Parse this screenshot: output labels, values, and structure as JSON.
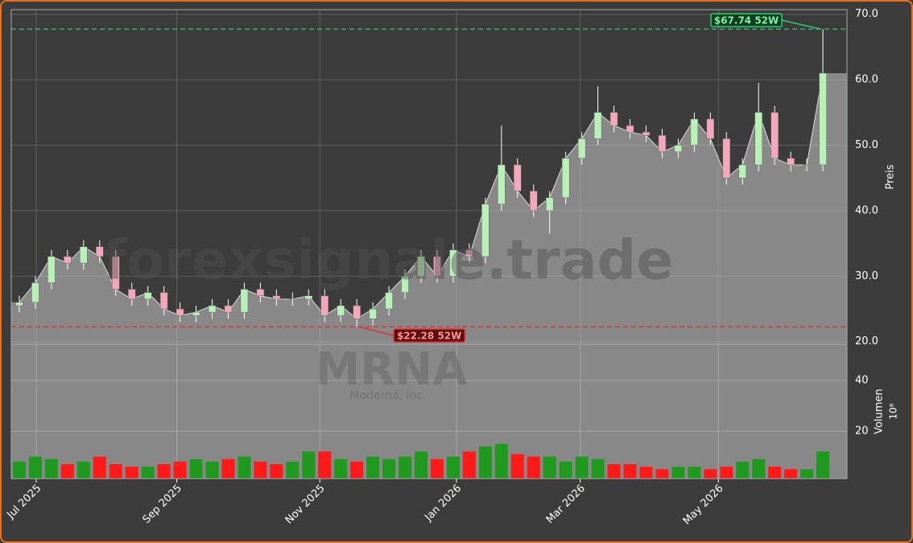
{
  "chart_data": [
    {
      "type": "candlestick",
      "watermark": "forexsignale.trade",
      "ylabel": "Preis",
      "xlim": [
        0,
        52
      ],
      "ylim": [
        19.6,
        70.7
      ],
      "yticks": [
        {
          "value": 20,
          "label": "20.0"
        },
        {
          "value": 30,
          "label": "30.0"
        },
        {
          "value": 40,
          "label": "40.0"
        },
        {
          "value": 50,
          "label": "50.0"
        },
        {
          "value": 60,
          "label": "60.0"
        },
        {
          "value": 70,
          "label": "70.0"
        }
      ],
      "grid": true,
      "up_color": "#b8f0b8",
      "down_color": "#f2a7bc",
      "area_color": "#888888",
      "open": [
        25.5,
        26,
        29,
        33,
        32,
        34.5,
        33,
        28,
        26.5,
        27.5,
        25,
        24,
        24.5,
        25.5,
        24.5,
        28,
        27,
        26.5,
        26.5,
        27,
        24,
        25.5,
        23.5,
        25,
        27.5,
        30,
        33,
        30,
        34,
        33,
        41,
        47,
        43,
        40,
        42,
        48,
        51,
        55,
        53,
        52,
        51.5,
        49,
        50,
        54,
        51,
        45,
        47,
        55,
        48,
        47,
        47
      ],
      "high": [
        27,
        30,
        34,
        34,
        35.5,
        35.5,
        34,
        29,
        28.5,
        28.5,
        26,
        25.5,
        26.5,
        26.5,
        29,
        29,
        28,
        27.5,
        28,
        28,
        26.5,
        26.5,
        26,
        28.5,
        31,
        34,
        34,
        35,
        35,
        42,
        53,
        48,
        44,
        43,
        49,
        52,
        59,
        56,
        54,
        53,
        52.5,
        51,
        55,
        55,
        52,
        48,
        59.5,
        56,
        49,
        48,
        67.74
      ],
      "low": [
        24.5,
        25,
        28,
        31,
        31,
        32,
        27,
        25.5,
        25.5,
        24,
        23,
        23,
        23.5,
        23.5,
        23.5,
        26,
        25.5,
        25.5,
        25.5,
        23,
        23,
        22.28,
        22.5,
        24,
        26.5,
        29,
        29,
        29,
        32,
        32,
        40,
        42,
        39,
        36.5,
        41,
        47,
        50,
        52,
        51,
        50.5,
        48,
        48,
        49,
        50,
        44,
        44,
        46,
        47,
        46,
        46,
        46
      ],
      "close": [
        26,
        29,
        33,
        32,
        34.5,
        33,
        28,
        26.5,
        27.5,
        25,
        24,
        24.5,
        25.5,
        24.5,
        28,
        27,
        26.5,
        26.5,
        27,
        24,
        25.5,
        23.5,
        25,
        27.5,
        30,
        33,
        30,
        34,
        33,
        41,
        47,
        43,
        40,
        42,
        48,
        51,
        55,
        53,
        52,
        51.5,
        49,
        50,
        54,
        51,
        45,
        47,
        55,
        48,
        47,
        47,
        61
      ],
      "high_52w": {
        "value": 67.74,
        "label": "$67.74 52W",
        "color": "#2ecc71"
      },
      "low_52w": {
        "value": 22.28,
        "label": "$22.28 52W",
        "color": "#e03030"
      }
    },
    {
      "type": "bar",
      "title": "MRNA",
      "subtitle": "Moderna, Inc.",
      "ylabel": "Volumen",
      "unit": "10⁶",
      "xlim": [
        0,
        52
      ],
      "ylim": [
        1.3,
        54.3
      ],
      "yticks": [
        20,
        40
      ],
      "grid": true,
      "up_color": "#1f9a1f",
      "down_color": "#ff1a1a",
      "values": [
        8,
        10,
        9,
        7,
        8,
        10,
        7,
        6,
        6,
        7,
        8,
        9,
        8,
        9,
        10,
        8,
        7,
        8,
        12,
        12,
        9,
        8,
        10,
        9,
        10,
        12,
        9,
        10,
        12,
        14,
        15,
        11,
        10,
        10,
        8,
        10,
        9,
        7,
        7,
        6,
        5,
        6,
        6,
        5,
        6,
        8,
        9,
        6,
        5,
        5,
        12
      ],
      "xticks": [
        {
          "value": 1.55,
          "label": "Jul 2025"
        },
        {
          "value": 10.3,
          "label": "Sep 2025"
        },
        {
          "value": 19.2,
          "label": "Nov 2025"
        },
        {
          "value": 27.7,
          "label": "Jan 2026"
        },
        {
          "value": 35.4,
          "label": "Mar 2026"
        },
        {
          "value": 44.0,
          "label": "May 2026"
        }
      ]
    }
  ]
}
